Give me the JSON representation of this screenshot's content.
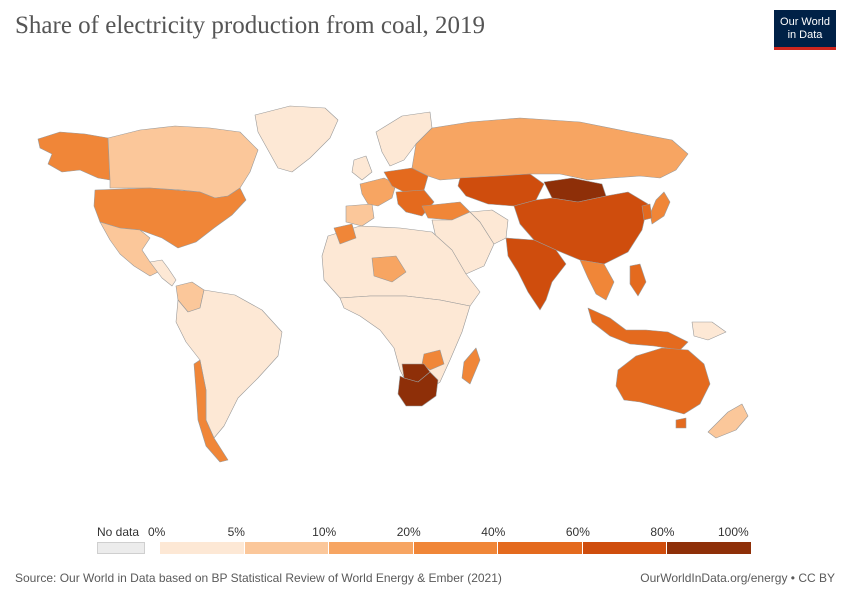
{
  "header": {
    "title": "Share of electricity production from coal, 2019",
    "logo_line1": "Our World",
    "logo_line2": "in Data"
  },
  "colors": {
    "nodata": "#ececec",
    "ocean": "#ffffff",
    "border": "#9a9a9a",
    "logo_bg": "#002147",
    "logo_accent": "#ce261e"
  },
  "legend": {
    "nodata_label": "No data",
    "ticks": [
      "0%",
      "5%",
      "10%",
      "20%",
      "40%",
      "60%",
      "80%",
      "100%"
    ],
    "bins": [
      {
        "color": "#fde8d5"
      },
      {
        "color": "#fbc79a"
      },
      {
        "color": "#f7a562"
      },
      {
        "color": "#f08638"
      },
      {
        "color": "#e46a1e"
      },
      {
        "color": "#cf4d0d"
      },
      {
        "color": "#8e2f08"
      }
    ]
  },
  "footer": {
    "source": "Source: Our World in Data based on BP Statistical Review of World Energy & Ember (2021)",
    "url": "OurWorldInData.org/energy • CC BY"
  },
  "map_data": {
    "regions": [
      {
        "name": "alaska",
        "bin": 3
      },
      {
        "name": "canada",
        "bin": 1
      },
      {
        "name": "greenland",
        "bin": 0
      },
      {
        "name": "usa",
        "bin": 3
      },
      {
        "name": "mexico",
        "bin": 1
      },
      {
        "name": "central-america",
        "bin": 0
      },
      {
        "name": "colombia",
        "bin": 1
      },
      {
        "name": "south-america",
        "bin": 0
      },
      {
        "name": "chile",
        "bin": 3
      },
      {
        "name": "iberia",
        "bin": 1
      },
      {
        "name": "western-europe",
        "bin": 2
      },
      {
        "name": "uk",
        "bin": 0
      },
      {
        "name": "scandinavia",
        "bin": 0
      },
      {
        "name": "central-europe",
        "bin": 4
      },
      {
        "name": "balkans",
        "bin": 4
      },
      {
        "name": "turkey",
        "bin": 3
      },
      {
        "name": "russia",
        "bin": 2
      },
      {
        "name": "kazakhstan",
        "bin": 5
      },
      {
        "name": "mongolia",
        "bin": 6
      },
      {
        "name": "china",
        "bin": 5
      },
      {
        "name": "india",
        "bin": 5
      },
      {
        "name": "middle-east",
        "bin": 0
      },
      {
        "name": "iran",
        "bin": 0
      },
      {
        "name": "japan",
        "bin": 3
      },
      {
        "name": "korea",
        "bin": 4
      },
      {
        "name": "southeast-asia",
        "bin": 3
      },
      {
        "name": "indonesia",
        "bin": 4
      },
      {
        "name": "philippines",
        "bin": 4
      },
      {
        "name": "north-africa",
        "bin": 0
      },
      {
        "name": "morocco",
        "bin": 3
      },
      {
        "name": "niger",
        "bin": 2
      },
      {
        "name": "central-africa",
        "bin": 0
      },
      {
        "name": "zimbabwe",
        "bin": 3
      },
      {
        "name": "botswana",
        "bin": 6
      },
      {
        "name": "south-africa",
        "bin": 6
      },
      {
        "name": "madagascar",
        "bin": 3
      },
      {
        "name": "australia",
        "bin": 4
      },
      {
        "name": "tasmania",
        "bin": 4
      },
      {
        "name": "new-zealand",
        "bin": 1
      },
      {
        "name": "papua",
        "bin": 0
      }
    ]
  }
}
